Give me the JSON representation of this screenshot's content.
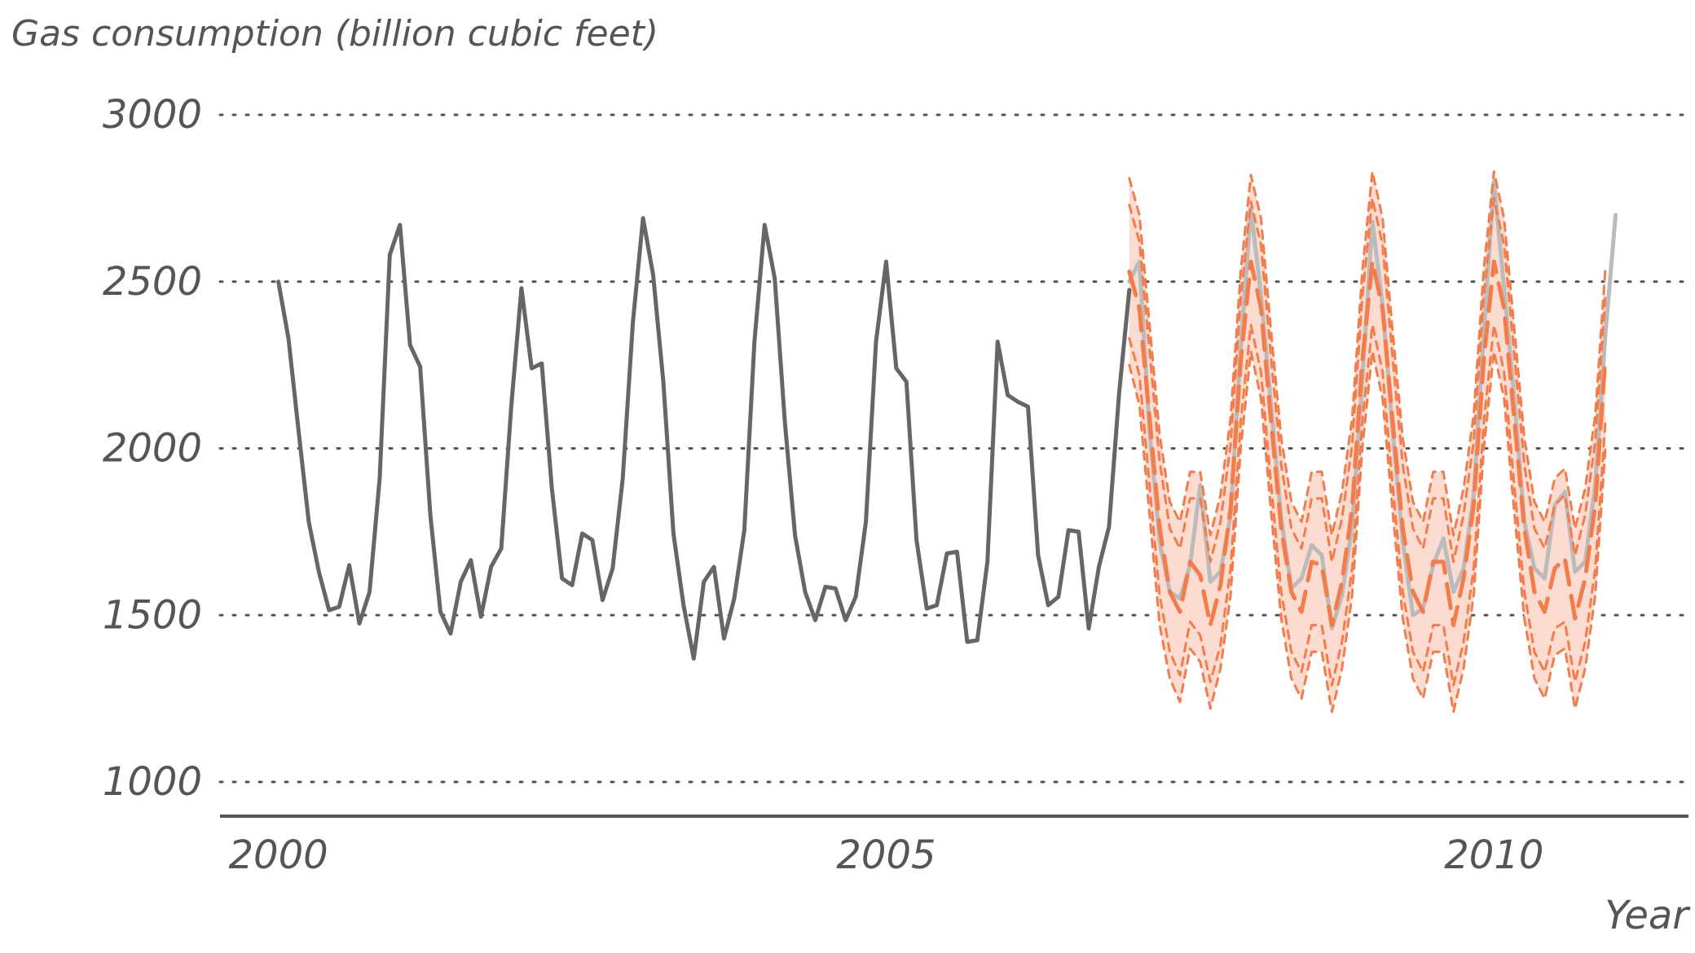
{
  "chart_data": {
    "type": "line",
    "title": "",
    "ylabel": "Gas consumption (billion cubic feet)",
    "xlabel": "Year",
    "xlim": [
      1999.52,
      2011.6
    ],
    "ylim": [
      1000,
      3000
    ],
    "x_ticks": [
      2000,
      2005,
      2010
    ],
    "y_ticks": [
      1000,
      1500,
      2000,
      2500,
      3000
    ],
    "grid": "horizontal dotted",
    "colors": {
      "history": "#666666",
      "actual": "#bbbbbb",
      "forecast": "#f47c4a",
      "band": "#fcdcd0"
    },
    "x_start": 2000.0,
    "x_step": 0.08333,
    "history": [
      2500,
      2330,
      2050,
      1780,
      1630,
      1515,
      1525,
      1650,
      1475,
      1570,
      1910,
      2580,
      2670,
      2310,
      2245,
      1800,
      1510,
      1445,
      1600,
      1665,
      1495,
      1645,
      1700,
      2130,
      2480,
      2240,
      2255,
      1880,
      1610,
      1590,
      1745,
      1725,
      1545,
      1640,
      1910,
      2380,
      2690,
      2520,
      2200,
      1745,
      1530,
      1370,
      1600,
      1645,
      1430,
      1550,
      1755,
      2320,
      2670,
      2510,
      2080,
      1740,
      1570,
      1485,
      1585,
      1580,
      1485,
      1555,
      1780,
      2320,
      2560,
      2240,
      2200,
      1725,
      1520,
      1530,
      1685,
      1690,
      1420,
      1425,
      1660,
      2320,
      2160,
      2140,
      2125,
      1680,
      1530,
      1555,
      1755,
      1750,
      1460,
      1645,
      1765,
      2165,
      2475
    ],
    "actual_start": 2007.0,
    "actual": [
      2500,
      2560,
      2050,
      1720,
      1570,
      1550,
      1650,
      1890,
      1600,
      1630,
      1800,
      2300,
      2720,
      2460,
      2130,
      1790,
      1580,
      1610,
      1710,
      1680,
      1460,
      1560,
      1770,
      2200,
      2680,
      2430,
      2050,
      1720,
      1500,
      1520,
      1650,
      1730,
      1570,
      1640,
      1860,
      2350,
      2800,
      2480,
      2150,
      1780,
      1640,
      1610,
      1830,
      1870,
      1630,
      1660,
      1890,
      2340,
      2700
    ],
    "forecast_start": 2007.0,
    "forecast": [
      2530,
      2420,
      2090,
      1760,
      1570,
      1510,
      1660,
      1620,
      1470,
      1590,
      1820,
      2260,
      2560,
      2420,
      2080,
      1760,
      1570,
      1510,
      1660,
      1650,
      1470,
      1600,
      1820,
      2260,
      2560,
      2420,
      2080,
      1760,
      1570,
      1510,
      1660,
      1660,
      1470,
      1610,
      1830,
      2270,
      2560,
      2420,
      2090,
      1760,
      1570,
      1510,
      1640,
      1670,
      1490,
      1610,
      1830,
      2270
    ],
    "lower_80": [
      2330,
      2220,
      1890,
      1560,
      1390,
      1320,
      1480,
      1440,
      1300,
      1410,
      1640,
      2080,
      2370,
      2230,
      1890,
      1570,
      1390,
      1330,
      1470,
      1470,
      1290,
      1420,
      1640,
      2080,
      2370,
      2230,
      1890,
      1570,
      1390,
      1330,
      1470,
      1470,
      1290,
      1420,
      1640,
      2080,
      2370,
      2230,
      1890,
      1570,
      1390,
      1330,
      1460,
      1480,
      1300,
      1420,
      1640,
      2080
    ],
    "upper_80": [
      2730,
      2620,
      2290,
      1960,
      1760,
      1700,
      1850,
      1850,
      1660,
      1780,
      2010,
      2450,
      2740,
      2610,
      2270,
      1950,
      1760,
      1700,
      1850,
      1850,
      1660,
      1790,
      2010,
      2450,
      2750,
      2610,
      2270,
      1950,
      1760,
      1700,
      1850,
      1850,
      1660,
      1800,
      2020,
      2460,
      2750,
      2610,
      2280,
      1950,
      1760,
      1700,
      1830,
      1860,
      1680,
      1800,
      2020,
      2460
    ],
    "lower_95": [
      2250,
      2130,
      1800,
      1470,
      1310,
      1240,
      1400,
      1360,
      1220,
      1340,
      1560,
      2000,
      2290,
      2150,
      1810,
      1490,
      1310,
      1250,
      1390,
      1390,
      1210,
      1340,
      1560,
      2000,
      2290,
      2150,
      1810,
      1490,
      1310,
      1250,
      1390,
      1390,
      1210,
      1340,
      1560,
      2000,
      2290,
      2150,
      1810,
      1490,
      1310,
      1250,
      1380,
      1400,
      1220,
      1340,
      1560,
      2000
    ],
    "upper_95": [
      2810,
      2700,
      2370,
      2040,
      1840,
      1780,
      1930,
      1930,
      1740,
      1860,
      2090,
      2530,
      2820,
      2690,
      2350,
      2030,
      1840,
      1780,
      1930,
      1930,
      1740,
      1870,
      2090,
      2530,
      2830,
      2690,
      2350,
      2030,
      1840,
      1780,
      1930,
      1930,
      1740,
      1880,
      2100,
      2540,
      2830,
      2690,
      2360,
      2030,
      1840,
      1780,
      1910,
      1940,
      1760,
      1880,
      2100,
      2540
    ]
  }
}
